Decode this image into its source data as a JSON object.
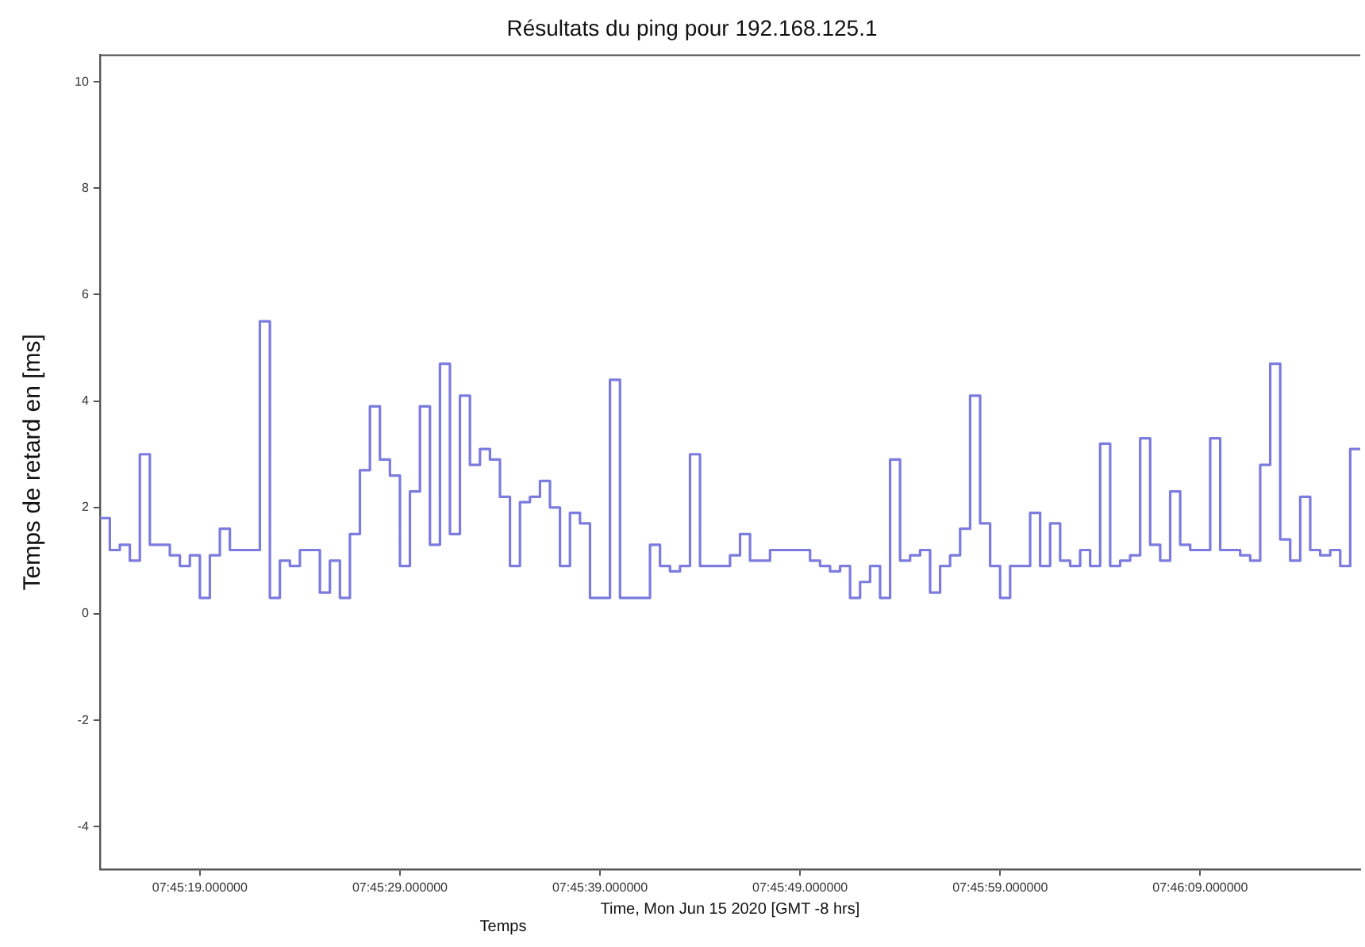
{
  "chart_data": {
    "type": "step",
    "title": "Résultats du ping pour 192.168.125.1",
    "xlabel": "Temps",
    "ylabel": "Temps de retard en [ms]",
    "annotations": [
      "Time, Mon Jun 15 2020 [GMT -8 hrs]"
    ],
    "categories": [
      null,
      null,
      null,
      null,
      null,
      null,
      null,
      null,
      null,
      null,
      "07:45:19.000000",
      null,
      null,
      null,
      null,
      null,
      null,
      null,
      null,
      null,
      null,
      null,
      null,
      null,
      null,
      null,
      null,
      null,
      null,
      null,
      "07:45:29.000000",
      null,
      null,
      null,
      null,
      null,
      null,
      null,
      null,
      null,
      null,
      null,
      null,
      null,
      null,
      null,
      null,
      null,
      null,
      null,
      "07:45:39.000000",
      null,
      null,
      null,
      null,
      null,
      null,
      null,
      null,
      null,
      null,
      null,
      null,
      null,
      null,
      null,
      null,
      null,
      null,
      null,
      "07:45:49.000000",
      null,
      null,
      null,
      null,
      null,
      null,
      null,
      null,
      null,
      null,
      null,
      null,
      null,
      null,
      null,
      null,
      null,
      null,
      null,
      "07:45:59.000000",
      null,
      null,
      null,
      null,
      null,
      null,
      null,
      null,
      null,
      null,
      null,
      null,
      null,
      null,
      null,
      null,
      null,
      null,
      null,
      "07:46:09.000000",
      null,
      null,
      null,
      null,
      null,
      null,
      null,
      null,
      null,
      null,
      null,
      null,
      null,
      null,
      null,
      null
    ],
    "series": [
      {
        "color": "#7b7be0",
        "values": [
          1.8,
          1.2,
          1.3,
          1.0,
          3.0,
          1.3,
          1.3,
          1.1,
          0.9,
          1.1,
          0.3,
          1.1,
          1.6,
          1.2,
          1.2,
          1.2,
          5.5,
          0.3,
          1.0,
          0.9,
          1.2,
          1.2,
          0.4,
          1.0,
          0.3,
          1.5,
          2.7,
          3.9,
          2.9,
          2.6,
          0.9,
          2.3,
          3.9,
          1.3,
          4.7,
          1.5,
          4.1,
          2.8,
          3.1,
          2.9,
          2.2,
          0.9,
          2.1,
          2.2,
          2.5,
          2.0,
          0.9,
          1.9,
          1.7,
          0.3,
          0.3,
          4.4,
          0.3,
          0.3,
          0.3,
          1.3,
          0.9,
          0.8,
          0.9,
          3.0,
          0.9,
          0.9,
          0.9,
          1.1,
          1.5,
          1.0,
          1.0,
          1.2,
          1.2,
          1.2,
          1.2,
          1.0,
          0.9,
          0.8,
          0.9,
          0.3,
          0.6,
          0.9,
          0.3,
          2.9,
          1.0,
          1.1,
          1.2,
          0.4,
          0.9,
          1.1,
          1.6,
          4.1,
          1.7,
          0.9,
          0.3,
          0.9,
          0.9,
          1.9,
          0.9,
          1.7,
          1.0,
          0.9,
          1.2,
          0.9,
          3.2,
          0.9,
          1.0,
          1.1,
          3.3,
          1.3,
          1.0,
          2.3,
          1.3,
          1.2,
          1.2,
          3.3,
          1.2,
          1.2,
          1.1,
          1.0,
          2.8,
          4.7,
          1.4,
          1.0,
          2.2,
          1.2,
          1.1,
          1.2,
          0.9,
          3.1,
          3.1
        ]
      }
    ],
    "ylim": [
      -4.8,
      10.5
    ],
    "yticks": [
      -4,
      -2,
      0,
      2,
      4,
      6,
      8,
      10
    ]
  }
}
